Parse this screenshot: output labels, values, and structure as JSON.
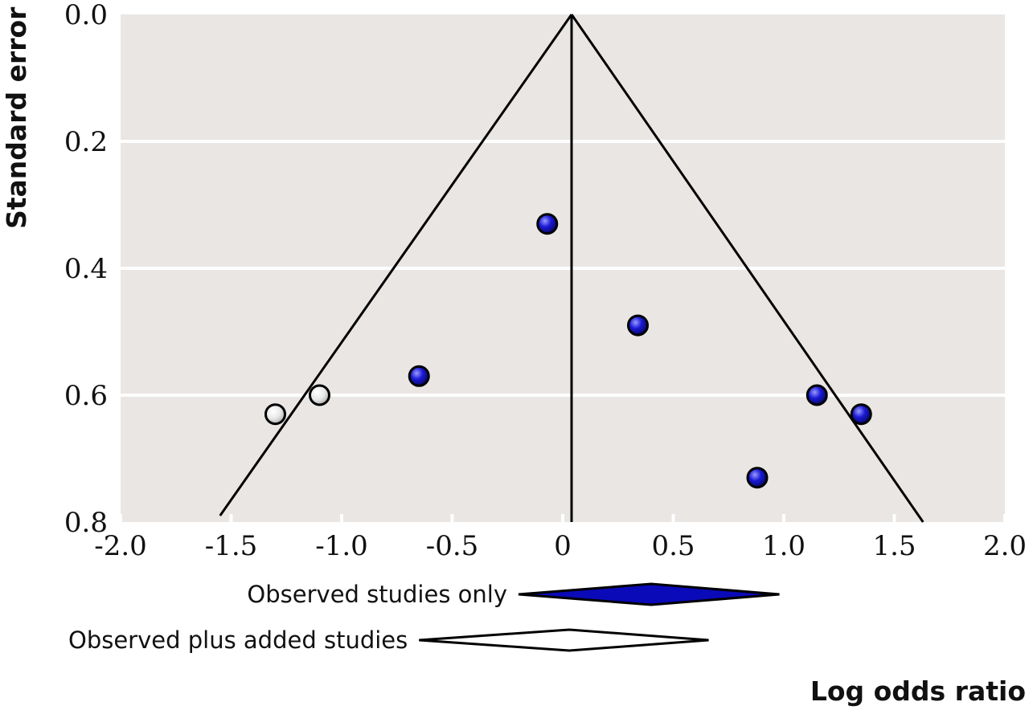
{
  "chart_data": {
    "type": "scatter",
    "title": "",
    "xlabel": "Log odds ratio",
    "ylabel": "Standard error",
    "xlim": [
      -2.0,
      2.0
    ],
    "ylim": [
      0.0,
      0.8
    ],
    "y_inverted": true,
    "x_ticks": [
      "-2.0",
      "-1.5",
      "-1.0",
      "-0.5",
      "0",
      "0.5",
      "1.0",
      "1.5",
      "2.0"
    ],
    "y_ticks": [
      "0.0",
      "0.2",
      "0.4",
      "0.6",
      "0.8"
    ],
    "grid": "horizontal",
    "funnel": {
      "apex_x": 0.04,
      "apex_y": 0.0,
      "left_bottom_x": -1.55,
      "right_bottom_x": 1.63,
      "bottom_y": 0.8
    },
    "series": [
      {
        "color": "#1a1ad6",
        "points": [
          {
            "x": -0.07,
            "y": 0.33
          },
          {
            "x": 0.34,
            "y": 0.49
          },
          {
            "x": -0.65,
            "y": 0.57
          },
          {
            "x": 1.15,
            "y": 0.6
          },
          {
            "x": 1.35,
            "y": 0.63
          },
          {
            "x": 0.88,
            "y": 0.73
          }
        ]
      },
      {
        "color": "#e8e8e8",
        "points": [
          {
            "x": -1.3,
            "y": 0.63
          },
          {
            "x": -1.1,
            "y": 0.6
          }
        ]
      }
    ],
    "summaries": [
      {
        "label": "Observed studies only",
        "center": 0.4,
        "low": -0.2,
        "high": 0.98,
        "fill": "#0a0ab8"
      },
      {
        "label": "Observed plus added studies",
        "center": 0.03,
        "low": -0.65,
        "high": 0.66,
        "fill": "#ffffff"
      }
    ]
  }
}
